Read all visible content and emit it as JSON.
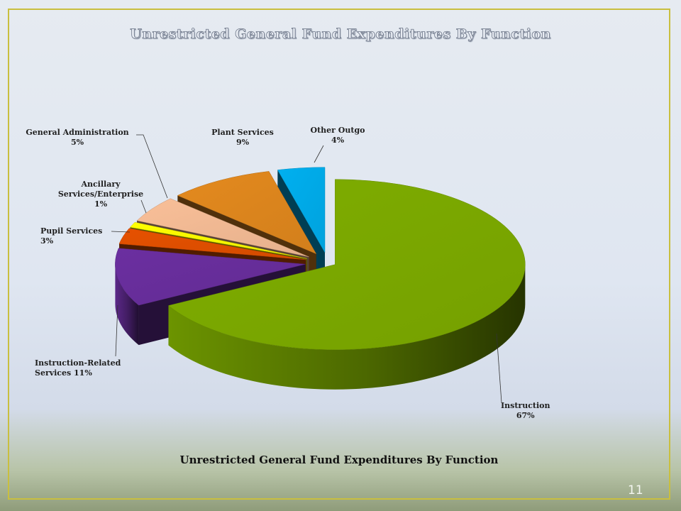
{
  "slide": {
    "title": "Unrestricted General Fund Expenditures By Function",
    "caption": "Unrestricted General Fund Expenditures By Function",
    "page_number": "11"
  },
  "chart_data": {
    "type": "pie",
    "variant": "3d-exploded",
    "title": "Unrestricted General Fund Expenditures By Function",
    "legend": "none",
    "slices": [
      {
        "label": "Instruction",
        "value": 67,
        "value_label": "67%",
        "color": "#7fae00"
      },
      {
        "label": "Instruction-Related Services",
        "value": 11,
        "value_label": "11%",
        "color": "#6b2fa0"
      },
      {
        "label": "Pupil Services",
        "value": 3,
        "value_label": "3%",
        "color": "#e65100"
      },
      {
        "label": "Ancillary Services/Enterprise",
        "value": 1,
        "value_label": "1%",
        "color": "#ffff00"
      },
      {
        "label": "General Administration",
        "value": 5,
        "value_label": "5%",
        "color": "#f9bf98"
      },
      {
        "label": "Plant Services",
        "value": 9,
        "value_label": "9%",
        "color": "#e48a1e"
      },
      {
        "label": "Other Outgo",
        "value": 4,
        "value_label": "4%",
        "color": "#00b0f0"
      }
    ]
  }
}
